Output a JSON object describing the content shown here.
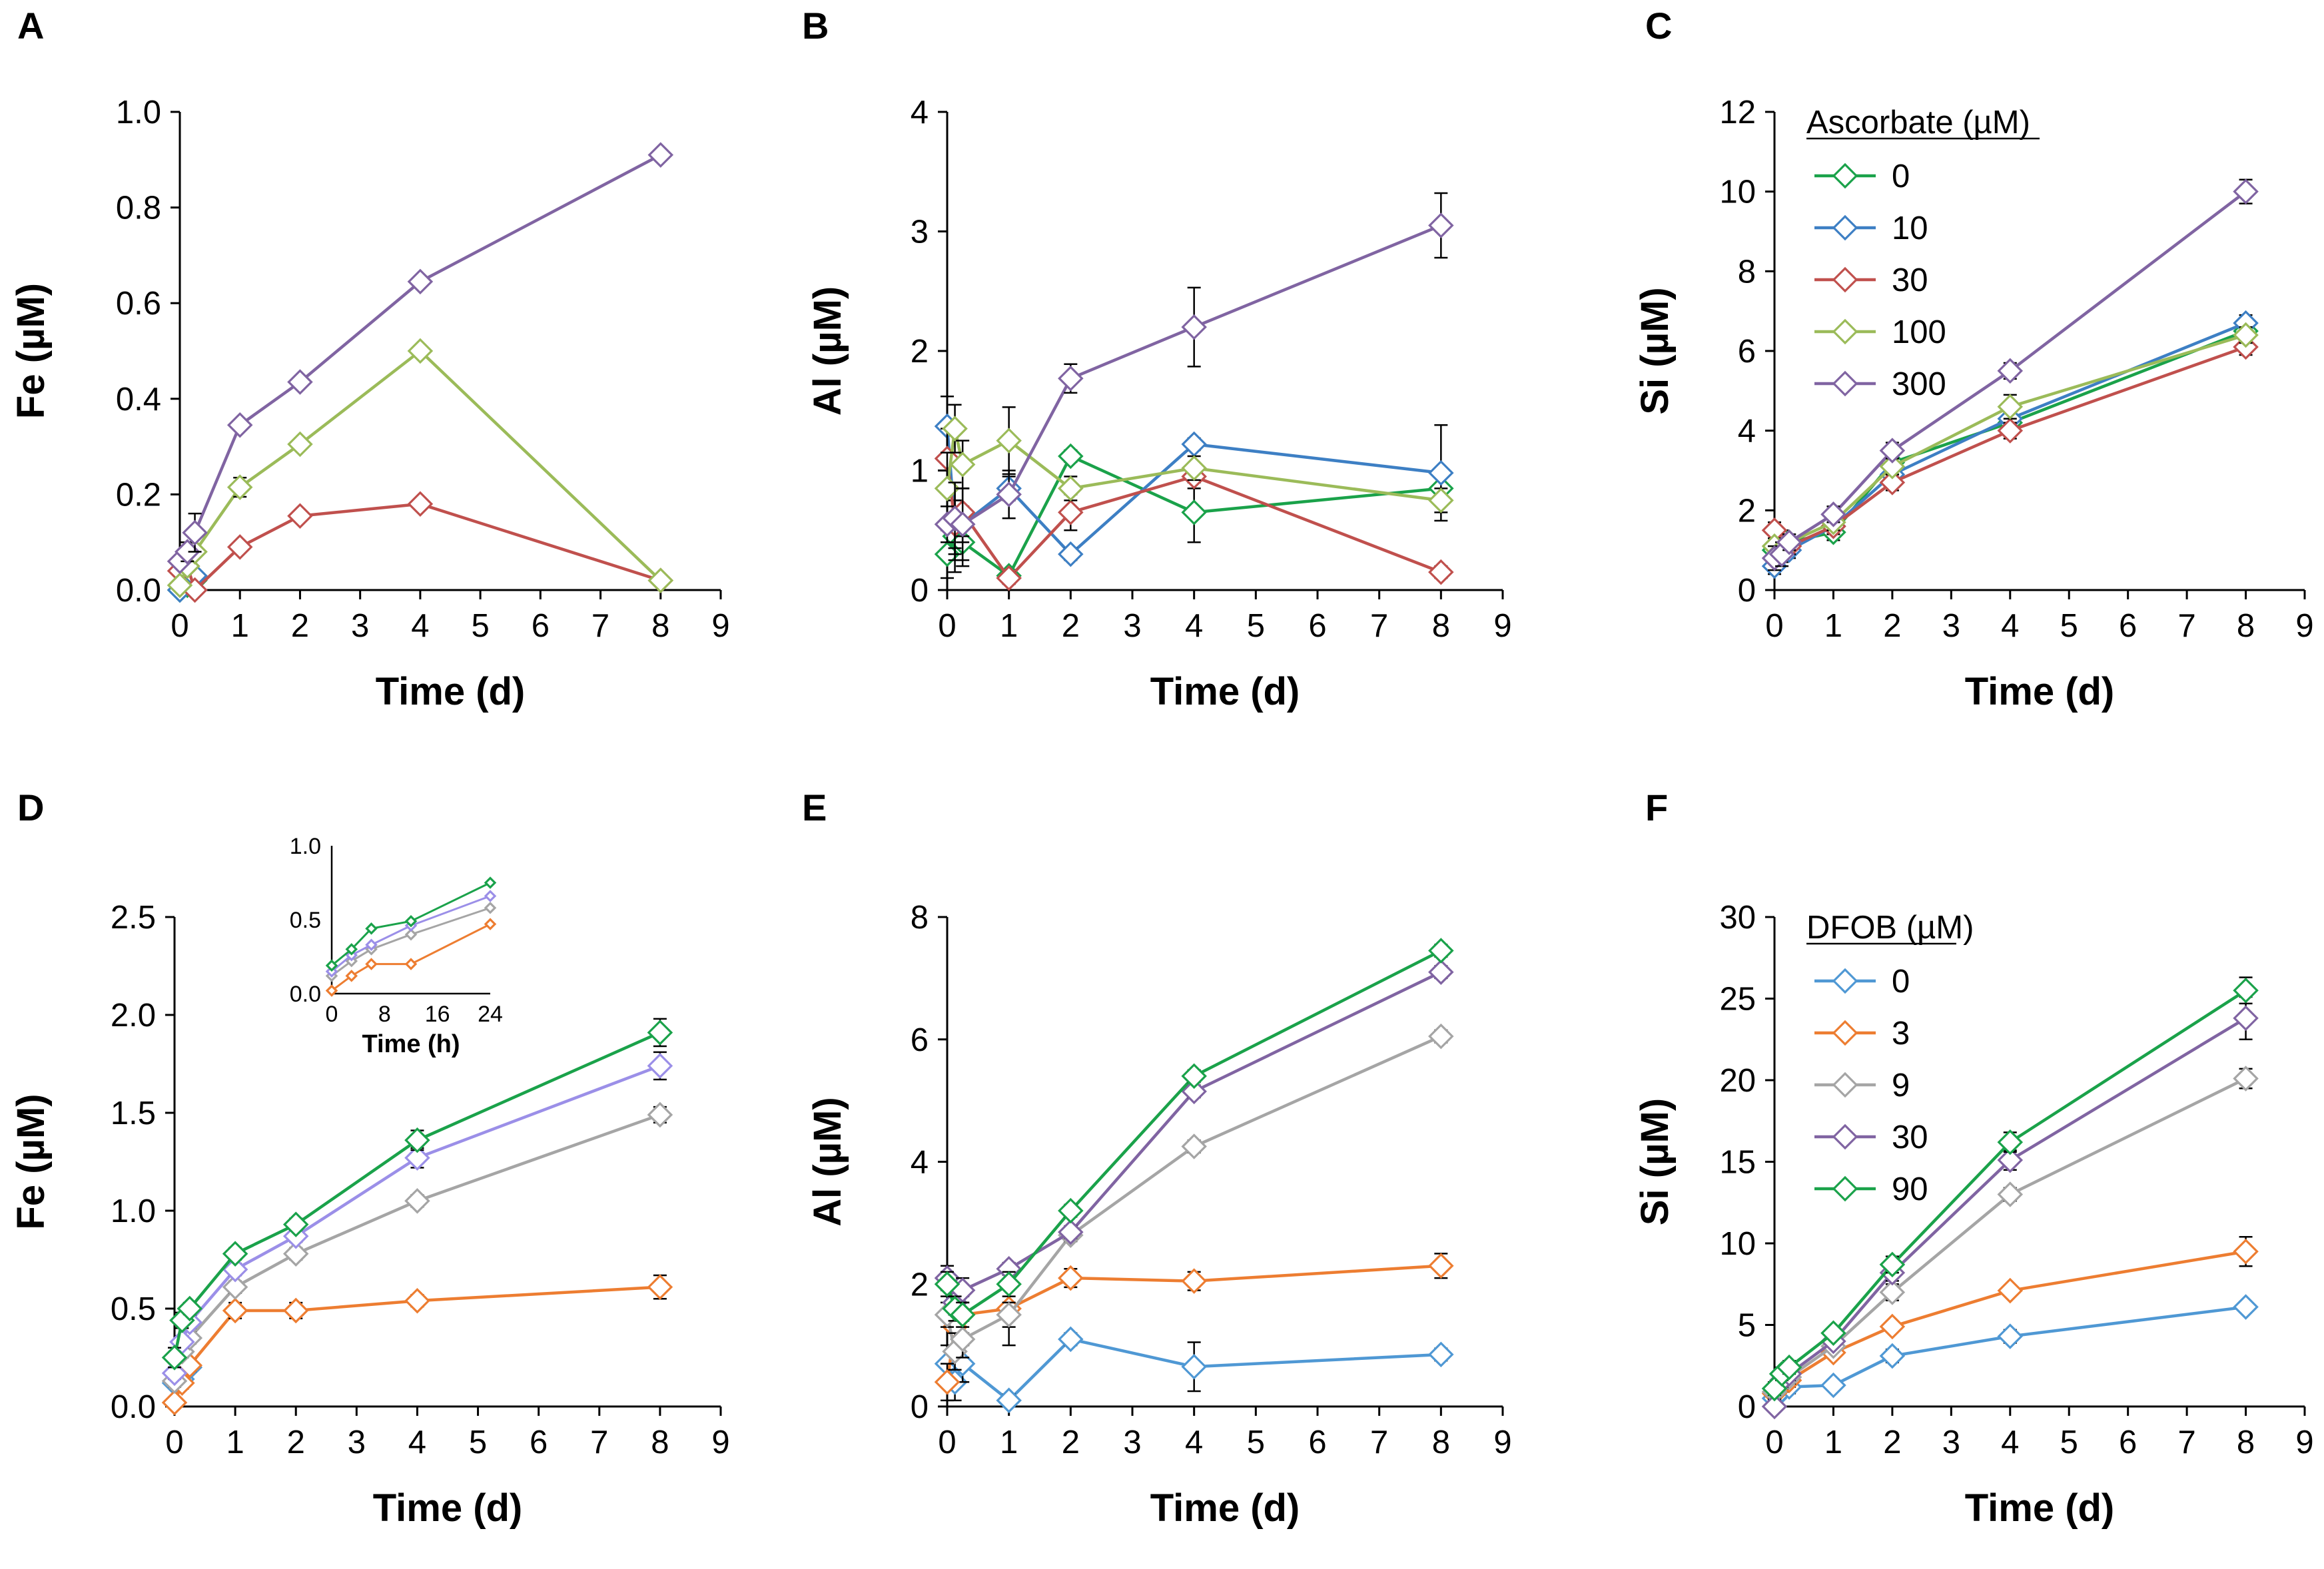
{
  "figure": "Six-panel dissolution time series",
  "chart_data": [
    {
      "id": "A",
      "type": "line",
      "panel_label": "A",
      "xlabel": "Time (d)",
      "ylabel": "Fe (µM)",
      "xlim": [
        0,
        9
      ],
      "ylim": [
        0,
        1.0
      ],
      "ytick_step": 0.2,
      "ytick_decimals": 1,
      "xticks": [
        "0",
        "1",
        "2",
        "3",
        "4",
        "5",
        "6",
        "7",
        "8",
        "9"
      ],
      "yticks": [
        "0.0",
        "0.2",
        "0.4",
        "0.6",
        "0.8",
        "1.0"
      ],
      "x": [
        0,
        0.125,
        0.25,
        1,
        2,
        4,
        8
      ],
      "series": [
        {
          "name": "0",
          "color": "#1aa24a",
          "values": [
            0.0,
            0.01,
            0.02,
            null,
            null,
            null,
            null
          ]
        },
        {
          "name": "10",
          "color": "#3d7fc4",
          "values": [
            0.0,
            0.02,
            0.03,
            null,
            null,
            null,
            null
          ]
        },
        {
          "name": "30",
          "color": "#c0504d",
          "values": [
            0.04,
            0.05,
            0.0,
            0.09,
            0.155,
            0.18,
            0.02
          ],
          "err": [
            0.01,
            0.01,
            0.01,
            0.01,
            0.01,
            0.01,
            0.01
          ]
        },
        {
          "name": "100",
          "color": "#9bbb59",
          "values": [
            0.01,
            0.05,
            0.08,
            0.215,
            0.305,
            0.5,
            0.02
          ],
          "err": [
            0.01,
            0.01,
            0.01,
            0.02,
            0.01,
            0.01,
            0.01
          ]
        },
        {
          "name": "300",
          "color": "#8064a2",
          "values": [
            0.06,
            0.08,
            0.12,
            0.345,
            0.435,
            0.645,
            0.91
          ],
          "err": [
            0.01,
            0.02,
            0.04,
            0.01,
            0.01,
            0.01,
            0.01
          ]
        }
      ]
    },
    {
      "id": "B",
      "type": "line",
      "panel_label": "B",
      "xlabel": "Time (d)",
      "ylabel": "Al (µM)",
      "xlim": [
        0,
        9
      ],
      "ylim": [
        0,
        4
      ],
      "ytick_step": 1,
      "ytick_decimals": 0,
      "xticks": [
        "0",
        "1",
        "2",
        "3",
        "4",
        "5",
        "6",
        "7",
        "8",
        "9"
      ],
      "yticks": [
        "0",
        "1",
        "2",
        "3",
        "4"
      ],
      "x": [
        0,
        0.125,
        0.25,
        1,
        2,
        4,
        8
      ],
      "series": [
        {
          "name": "0",
          "color": "#1aa24a",
          "values": [
            0.3,
            0.45,
            0.4,
            0.12,
            1.12,
            0.65,
            0.85
          ],
          "err": [
            0.2,
            0.3,
            0.2,
            0.05,
            0.05,
            0.25,
            0.1
          ]
        },
        {
          "name": "10",
          "color": "#3d7fc4",
          "values": [
            1.37,
            0.55,
            0.55,
            0.85,
            0.3,
            1.22,
            0.98
          ],
          "err": [
            0.25,
            0.2,
            0.15,
            0.1,
            0.05,
            0.05,
            0.4
          ]
        },
        {
          "name": "30",
          "color": "#c0504d",
          "values": [
            1.1,
            0.55,
            0.65,
            0.1,
            0.65,
            0.95,
            0.15
          ],
          "err": [
            0.25,
            0.3,
            0.2,
            0.05,
            0.15,
            0.1,
            0.05
          ]
        },
        {
          "name": "100",
          "color": "#9bbb59",
          "values": [
            0.85,
            1.35,
            1.05,
            1.25,
            0.85,
            1.02,
            0.75
          ],
          "err": [
            0.3,
            0.2,
            0.2,
            0.28,
            0.1,
            0.1,
            0.1
          ]
        },
        {
          "name": "300",
          "color": "#8064a2",
          "values": [
            0.55,
            0.6,
            0.55,
            0.8,
            1.77,
            2.2,
            3.05
          ],
          "err": [
            0.15,
            0.3,
            0.3,
            0.2,
            0.12,
            0.33,
            0.27
          ]
        }
      ]
    },
    {
      "id": "C",
      "type": "line",
      "panel_label": "C",
      "xlabel": "Time (d)",
      "ylabel": "Si (µM)",
      "xlim": [
        0,
        9
      ],
      "ylim": [
        0,
        12
      ],
      "ytick_step": 2,
      "ytick_decimals": 0,
      "xticks": [
        "0",
        "1",
        "2",
        "3",
        "4",
        "5",
        "6",
        "7",
        "8",
        "9"
      ],
      "yticks": [
        "0",
        "2",
        "4",
        "6",
        "8",
        "10",
        "12"
      ],
      "legend_title": "Ascorbate (µM)",
      "legend_position": "top-left",
      "x": [
        0,
        0.125,
        0.25,
        1,
        2,
        4,
        8
      ],
      "series": [
        {
          "name": "0",
          "color": "#1aa24a",
          "values": [
            1.0,
            1.3,
            1.2,
            1.45,
            3.2,
            4.2,
            6.5
          ],
          "err": [
            0.2,
            0.2,
            0.2,
            0.2,
            0.2,
            0.2,
            0.2
          ]
        },
        {
          "name": "10",
          "color": "#3d7fc4",
          "values": [
            0.6,
            0.9,
            1.0,
            1.6,
            2.9,
            4.3,
            6.7
          ],
          "err": [
            0.2,
            0.2,
            0.2,
            0.2,
            0.2,
            0.2,
            0.2
          ]
        },
        {
          "name": "30",
          "color": "#c0504d",
          "values": [
            1.5,
            1.1,
            1.1,
            1.6,
            2.7,
            4.0,
            6.1
          ],
          "err": [
            0.2,
            0.2,
            0.2,
            0.2,
            0.2,
            0.2,
            0.2
          ]
        },
        {
          "name": "100",
          "color": "#9bbb59",
          "values": [
            1.1,
            1.0,
            1.2,
            1.7,
            3.1,
            4.6,
            6.4
          ],
          "err": [
            0.2,
            0.2,
            0.2,
            0.2,
            0.2,
            0.3,
            0.2
          ]
        },
        {
          "name": "300",
          "color": "#8064a2",
          "values": [
            0.8,
            0.9,
            1.2,
            1.9,
            3.5,
            5.5,
            10.0
          ],
          "err": [
            0.3,
            0.3,
            0.2,
            0.2,
            0.2,
            0.2,
            0.3
          ]
        }
      ]
    },
    {
      "id": "D",
      "type": "line",
      "panel_label": "D",
      "xlabel": "Time (d)",
      "ylabel": "Fe (µM)",
      "xlim": [
        0,
        9
      ],
      "ylim": [
        0,
        2.5
      ],
      "ytick_step": 0.5,
      "ytick_decimals": 1,
      "xticks": [
        "0",
        "1",
        "2",
        "3",
        "4",
        "5",
        "6",
        "7",
        "8",
        "9"
      ],
      "yticks": [
        "0.0",
        "0.5",
        "1.0",
        "1.5",
        "2.0",
        "2.5"
      ],
      "x": [
        0,
        0.125,
        0.25,
        1,
        2,
        4,
        8
      ],
      "series": [
        {
          "name": "0",
          "color": "#4f98d4",
          "values": [
            0.12,
            0.14,
            0.2,
            null,
            null,
            null,
            null
          ]
        },
        {
          "name": "3",
          "color": "#ed7d31",
          "values": [
            0.02,
            0.12,
            0.21,
            0.49,
            0.49,
            0.54,
            0.61
          ],
          "err": [
            0.02,
            0.03,
            0.03,
            0.04,
            0.04,
            0.03,
            0.06
          ]
        },
        {
          "name": "9",
          "color": "#a5a5a5",
          "values": [
            0.13,
            0.28,
            0.35,
            0.61,
            0.78,
            1.05,
            1.49
          ],
          "err": [
            0.03,
            0.03,
            0.03,
            0.03,
            0.03,
            0.03,
            0.04
          ]
        },
        {
          "name": "30",
          "color": "#9b8fe8",
          "values": [
            0.17,
            0.33,
            0.43,
            0.7,
            0.87,
            1.27,
            1.74
          ],
          "err": [
            0.03,
            0.03,
            0.03,
            0.03,
            0.03,
            0.05,
            0.07
          ]
        },
        {
          "name": "90",
          "color": "#1aa24a",
          "values": [
            0.25,
            0.44,
            0.5,
            0.78,
            0.93,
            1.36,
            1.91
          ],
          "err": [
            0.05,
            0.04,
            0.03,
            0.03,
            0.03,
            0.05,
            0.07
          ]
        }
      ],
      "inset": {
        "xlabel": "Time (h)",
        "xlim": [
          0,
          24
        ],
        "ylim": [
          0,
          1.0
        ],
        "xticks": [
          "0",
          "8",
          "16",
          "24"
        ],
        "yticks": [
          "0.0",
          "0.5",
          "1.0"
        ],
        "x": [
          0,
          3,
          6,
          12,
          24
        ],
        "series": [
          {
            "name": "3",
            "color": "#ed7d31",
            "values": [
              0.02,
              0.12,
              0.2,
              0.2,
              0.47
            ]
          },
          {
            "name": "9",
            "color": "#a5a5a5",
            "values": [
              0.12,
              0.22,
              0.3,
              0.4,
              0.58
            ]
          },
          {
            "name": "30",
            "color": "#9b8fe8",
            "values": [
              0.15,
              0.26,
              0.33,
              0.46,
              0.66
            ]
          },
          {
            "name": "90",
            "color": "#1aa24a",
            "values": [
              0.19,
              0.3,
              0.44,
              0.49,
              0.75
            ]
          }
        ]
      }
    },
    {
      "id": "E",
      "type": "line",
      "panel_label": "E",
      "xlabel": "Time (d)",
      "ylabel": "Al (µM)",
      "xlim": [
        0,
        9
      ],
      "ylim": [
        0,
        8
      ],
      "ytick_step": 2,
      "ytick_decimals": 0,
      "xticks": [
        "0",
        "1",
        "2",
        "3",
        "4",
        "5",
        "6",
        "7",
        "8",
        "9"
      ],
      "yticks": [
        "0",
        "2",
        "4",
        "6",
        "8"
      ],
      "x": [
        0,
        0.125,
        0.25,
        1,
        2,
        4,
        8
      ],
      "series": [
        {
          "name": "0",
          "color": "#4f98d4",
          "values": [
            0.7,
            0.4,
            0.7,
            0.1,
            1.1,
            0.65,
            0.85
          ],
          "err": [
            0.3,
            0.3,
            0.3,
            0.1,
            0.1,
            0.4,
            0.1
          ]
        },
        {
          "name": "3",
          "color": "#ed7d31",
          "values": [
            0.4,
            1.3,
            1.5,
            1.6,
            2.1,
            2.05,
            2.3
          ],
          "err": [
            0.3,
            0.3,
            0.3,
            0.6,
            0.15,
            0.15,
            0.2
          ]
        },
        {
          "name": "9",
          "color": "#a5a5a5",
          "values": [
            1.5,
            0.9,
            1.1,
            1.5,
            2.8,
            4.25,
            6.05
          ],
          "err": [
            0.2,
            0.3,
            0.3,
            0.2,
            0.1,
            0.1,
            0.1
          ]
        },
        {
          "name": "30",
          "color": "#8064a2",
          "values": [
            2.1,
            1.7,
            1.9,
            2.25,
            2.85,
            5.15,
            7.1
          ],
          "err": [
            0.2,
            0.2,
            0.2,
            0.1,
            0.1,
            0.1,
            0.1
          ]
        },
        {
          "name": "90",
          "color": "#1aa24a",
          "values": [
            2.0,
            1.6,
            1.5,
            2.0,
            3.2,
            5.4,
            7.45
          ],
          "err": [
            0.2,
            0.2,
            0.2,
            0.2,
            0.1,
            0.1,
            0.1
          ]
        }
      ]
    },
    {
      "id": "F",
      "type": "line",
      "panel_label": "F",
      "xlabel": "Time (d)",
      "ylabel": "Si (µM)",
      "xlim": [
        0,
        9
      ],
      "ylim": [
        0,
        30
      ],
      "ytick_step": 5,
      "ytick_decimals": 0,
      "xticks": [
        "0",
        "1",
        "2",
        "3",
        "4",
        "5",
        "6",
        "7",
        "8",
        "9"
      ],
      "yticks": [
        "0",
        "5",
        "10",
        "15",
        "20",
        "25",
        "30"
      ],
      "legend_title": "DFOB (µM)",
      "legend_position": "top-left",
      "x": [
        0,
        0.125,
        0.25,
        1,
        2,
        4,
        8
      ],
      "series": [
        {
          "name": "0",
          "color": "#4f98d4",
          "values": [
            0.5,
            1.0,
            1.2,
            1.3,
            3.1,
            4.3,
            6.1
          ],
          "err": [
            0.4,
            0.4,
            0.4,
            0.2,
            0.4,
            0.4,
            0.3
          ]
        },
        {
          "name": "3",
          "color": "#ed7d31",
          "values": [
            0.8,
            1.3,
            1.6,
            3.3,
            4.9,
            7.1,
            9.5
          ],
          "err": [
            0.4,
            0.4,
            0.4,
            0.3,
            0.3,
            0.3,
            0.9
          ]
        },
        {
          "name": "9",
          "color": "#a5a5a5",
          "values": [
            0.9,
            1.5,
            1.8,
            3.7,
            7.0,
            13.0,
            20.1
          ],
          "err": [
            0.4,
            0.4,
            0.4,
            0.3,
            0.5,
            0.4,
            0.6
          ]
        },
        {
          "name": "30",
          "color": "#8064a2",
          "values": [
            0.0,
            1.6,
            2.0,
            4.0,
            8.2,
            15.1,
            23.8
          ],
          "err": [
            0.4,
            0.4,
            0.4,
            0.3,
            0.5,
            0.6,
            1.3
          ]
        },
        {
          "name": "90",
          "color": "#1aa24a",
          "values": [
            1.1,
            2.0,
            2.4,
            4.5,
            8.7,
            16.2,
            25.5
          ],
          "err": [
            0.4,
            0.4,
            0.4,
            0.3,
            0.5,
            0.6,
            0.8
          ]
        }
      ]
    }
  ]
}
